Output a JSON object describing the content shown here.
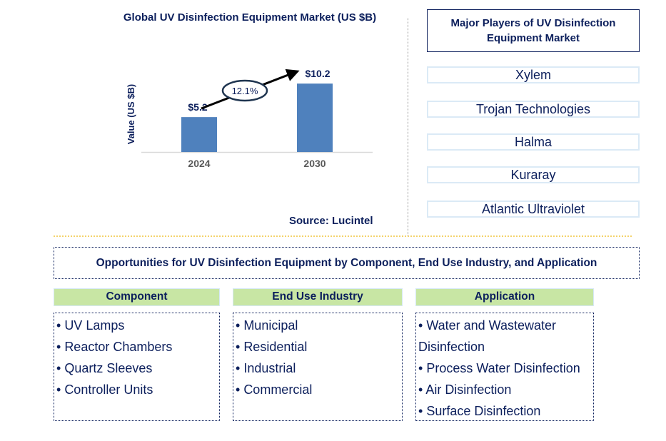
{
  "chart_data": {
    "type": "bar",
    "title": "Global UV Disinfection Equipment Market (US $B)",
    "ylabel": "Value (US $B)",
    "xlabel": "",
    "categories": [
      "2024",
      "2030"
    ],
    "values": [
      5.2,
      10.2
    ],
    "data_labels": [
      "$5.2",
      "$10.2"
    ],
    "annotation": "12.1%",
    "bar_color": "#4f81bd",
    "grid": false
  },
  "source": "Source: Lucintel",
  "major_players": {
    "title": "Major Players of UV Disinfection Equipment Market",
    "items": [
      "Xylem",
      "Trojan Technologies",
      "Halma",
      "Kuraray",
      "Atlantic Ultraviolet"
    ]
  },
  "opportunities": {
    "title": "Opportunities for UV Disinfection Equipment by Component, End Use Industry, and Application",
    "columns": [
      {
        "header": "Component",
        "items": [
          "UV Lamps",
          "Reactor Chambers",
          "Quartz Sleeves",
          "Controller Units"
        ]
      },
      {
        "header": "End Use Industry",
        "items": [
          "Municipal",
          "Residential",
          "Industrial",
          "Commercial"
        ]
      },
      {
        "header": "Application",
        "items": [
          "Water and Wastewater Disinfection",
          "Process Water Disinfection",
          "Air Disinfection",
          "Surface Disinfection"
        ]
      }
    ]
  }
}
